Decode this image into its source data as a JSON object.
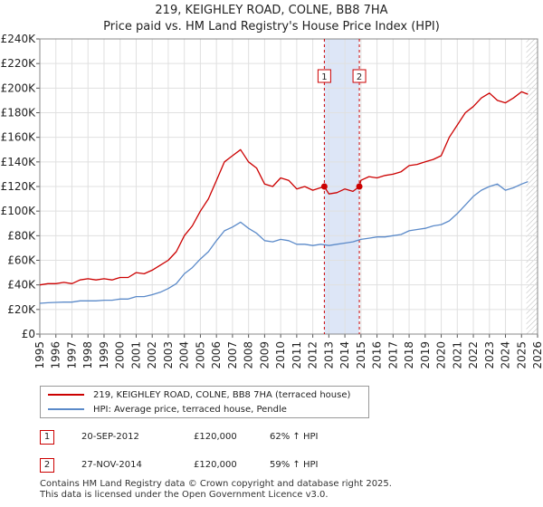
{
  "title_line1": "219, KEIGHLEY ROAD, COLNE, BB8 7HA",
  "title_line2": "Price paid vs. HM Land Registry's House Price Index (HPI)",
  "colors": {
    "property": "#cc0000",
    "hpi": "#5b8ac9",
    "shade": "#dde6f7",
    "marker_line": "#cc0000",
    "grid": "#e0e0e0"
  },
  "chart_data": {
    "type": "line",
    "ylim": [
      0,
      240000
    ],
    "xlim": [
      1995,
      2026
    ],
    "y_ticks": [
      0,
      20000,
      40000,
      60000,
      80000,
      100000,
      120000,
      140000,
      160000,
      180000,
      200000,
      220000,
      240000
    ],
    "y_tick_labels": [
      "£0",
      "£20K",
      "£40K",
      "£60K",
      "£80K",
      "£100K",
      "£120K",
      "£140K",
      "£160K",
      "£180K",
      "£200K",
      "£220K",
      "£240K"
    ],
    "x_ticks": [
      1995,
      1996,
      1997,
      1998,
      1999,
      2000,
      2001,
      2002,
      2003,
      2004,
      2005,
      2006,
      2007,
      2008,
      2009,
      2010,
      2011,
      2012,
      2013,
      2014,
      2015,
      2016,
      2017,
      2018,
      2019,
      2020,
      2021,
      2022,
      2023,
      2024,
      2025,
      2026
    ],
    "x_tick_labels": [
      "1995",
      "1996",
      "1997",
      "1998",
      "1999",
      "2000",
      "2001",
      "2002",
      "2003",
      "2004",
      "2005",
      "2006",
      "2007",
      "2008",
      "2009",
      "2010",
      "2011",
      "2012",
      "2013",
      "2014",
      "2015",
      "2016",
      "2017",
      "2018",
      "2019",
      "2020",
      "2021",
      "2022",
      "2023",
      "2024",
      "2025",
      "2026"
    ],
    "shaded_range": [
      2012.72,
      2014.9
    ],
    "hatched_from": 2025.3,
    "series": [
      {
        "name": "219, KEIGHLEY ROAD, COLNE, BB8 7HA (terraced house)",
        "x": [
          1995,
          1995.5,
          1996,
          1996.5,
          1997,
          1997.5,
          1998,
          1998.5,
          1999,
          1999.5,
          2000,
          2000.5,
          2001,
          2001.5,
          2002,
          2002.5,
          2003,
          2003.5,
          2004,
          2004.5,
          2005,
          2005.5,
          2006,
          2006.5,
          2007,
          2007.5,
          2008,
          2008.5,
          2009,
          2009.5,
          2010,
          2010.5,
          2011,
          2011.5,
          2012,
          2012.72,
          2013,
          2013.5,
          2014,
          2014.5,
          2014.9,
          2015,
          2015.5,
          2016,
          2016.5,
          2017,
          2017.5,
          2018,
          2018.5,
          2019,
          2019.5,
          2020,
          2020.5,
          2021,
          2021.5,
          2022,
          2022.5,
          2023,
          2023.5,
          2024,
          2024.5,
          2025,
          2025.4
        ],
        "values": [
          40000,
          41000,
          41000,
          42000,
          41000,
          44000,
          45000,
          44000,
          45000,
          44000,
          46000,
          46000,
          50000,
          49000,
          52000,
          56000,
          60000,
          67000,
          80000,
          88000,
          100000,
          110000,
          125000,
          140000,
          145000,
          150000,
          140000,
          135000,
          122000,
          120000,
          127000,
          125000,
          118000,
          120000,
          117000,
          120000,
          114000,
          115000,
          118000,
          116000,
          120000,
          125000,
          128000,
          127000,
          129000,
          130000,
          132000,
          137000,
          138000,
          140000,
          142000,
          145000,
          160000,
          170000,
          180000,
          185000,
          192000,
          196000,
          190000,
          188000,
          192000,
          197000,
          195000
        ]
      },
      {
        "name": "HPI: Average price, terraced house, Pendle",
        "x": [
          1995,
          1995.5,
          1996,
          1996.5,
          1997,
          1997.5,
          1998,
          1998.5,
          1999,
          1999.5,
          2000,
          2000.5,
          2001,
          2001.5,
          2002,
          2002.5,
          2003,
          2003.5,
          2004,
          2004.5,
          2005,
          2005.5,
          2006,
          2006.5,
          2007,
          2007.5,
          2008,
          2008.5,
          2009,
          2009.5,
          2010,
          2010.5,
          2011,
          2011.5,
          2012,
          2012.5,
          2013,
          2013.5,
          2014,
          2014.5,
          2015,
          2015.5,
          2016,
          2016.5,
          2017,
          2017.5,
          2018,
          2018.5,
          2019,
          2019.5,
          2020,
          2020.5,
          2021,
          2021.5,
          2022,
          2022.5,
          2023,
          2023.5,
          2024,
          2024.5,
          2025,
          2025.4
        ],
        "values": [
          25000,
          25500,
          25800,
          26000,
          26000,
          27000,
          27000,
          27000,
          27500,
          27500,
          28500,
          28500,
          30500,
          30500,
          32000,
          34000,
          37000,
          41000,
          49000,
          54000,
          61000,
          67000,
          76000,
          84000,
          87000,
          91000,
          86000,
          82000,
          76000,
          75000,
          77000,
          76000,
          73000,
          73000,
          72000,
          73000,
          72000,
          73000,
          74000,
          75000,
          77000,
          78000,
          79000,
          79000,
          80000,
          81000,
          84000,
          85000,
          86000,
          88000,
          89000,
          92000,
          98000,
          105000,
          112000,
          117000,
          120000,
          122000,
          117000,
          119000,
          122000,
          124000
        ]
      }
    ],
    "markers": [
      {
        "label": "1",
        "x": 2012.72,
        "y": 120000
      },
      {
        "label": "2",
        "x": 2014.9,
        "y": 120000
      }
    ]
  },
  "legend": {
    "items": [
      {
        "label": "219, KEIGHLEY ROAD, COLNE, BB8 7HA (terraced house)"
      },
      {
        "label": "HPI: Average price, terraced house, Pendle"
      }
    ]
  },
  "sales": [
    {
      "num": "1",
      "date": "20-SEP-2012",
      "price": "£120,000",
      "hpi": "62% ↑ HPI"
    },
    {
      "num": "2",
      "date": "27-NOV-2014",
      "price": "£120,000",
      "hpi": "59% ↑ HPI"
    }
  ],
  "footer": {
    "line1": "Contains HM Land Registry data © Crown copyright and database right 2025.",
    "line2": "This data is licensed under the Open Government Licence v3.0."
  }
}
